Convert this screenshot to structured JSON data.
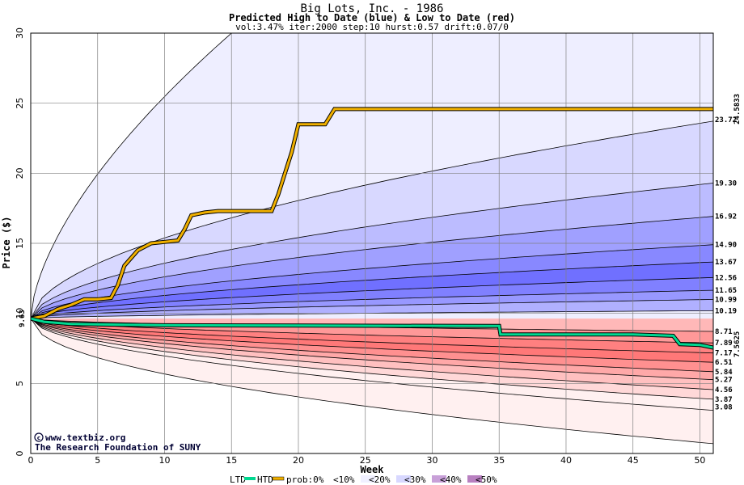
{
  "chart_data": {
    "type": "area",
    "title": "Big Lots, Inc. - 1986",
    "subtitle": "Predicted High to Date (blue) &  Low to Date (red)",
    "params": "vol:3.47% iter:2000 step:10 hurst:0.57 drift:0.07/0",
    "xlabel": "Week",
    "ylabel": "Price ($)",
    "xlim": [
      0,
      51
    ],
    "ylim": [
      0,
      30
    ],
    "x_ticks": [
      0,
      5,
      10,
      15,
      20,
      25,
      30,
      35,
      40,
      45,
      50
    ],
    "y_ticks": [
      0,
      5,
      10,
      15,
      20,
      25,
      30
    ],
    "start_price": 9.63,
    "start_label": "9.63",
    "upper_percentile_ends": [
      {
        "value": 23.72,
        "label": "23.72"
      },
      {
        "value": 19.3,
        "label": "19.30"
      },
      {
        "value": 16.92,
        "label": "16.92"
      },
      {
        "value": 14.9,
        "label": "14.90"
      },
      {
        "value": 13.67,
        "label": "13.67"
      },
      {
        "value": 12.56,
        "label": "12.56"
      },
      {
        "value": 11.65,
        "label": "11.65"
      },
      {
        "value": 10.99,
        "label": "10.99"
      },
      {
        "value": 10.19,
        "label": "10.19"
      }
    ],
    "lower_percentile_ends": [
      {
        "value": 8.71,
        "label": "8.71"
      },
      {
        "value": 7.89,
        "label": "7.89"
      },
      {
        "value": 7.17,
        "label": "7.17"
      },
      {
        "value": 6.51,
        "label": "6.51"
      },
      {
        "value": 5.84,
        "label": "5.84"
      },
      {
        "value": 5.27,
        "label": "5.27"
      },
      {
        "value": 4.56,
        "label": "4.56"
      },
      {
        "value": 3.87,
        "label": "3.87"
      },
      {
        "value": 3.08,
        "label": "3.08"
      }
    ],
    "upper_band_colors": [
      "#eeeeff",
      "#d8d8ff",
      "#bcbcff",
      "#a0a0ff",
      "#8888ff",
      "#7070ff",
      "#8080ff",
      "#9898ff",
      "#b0b0ff"
    ],
    "lower_band_colors": [
      "#ffb8b8",
      "#ff9898",
      "#ff8080",
      "#ff7878",
      "#ff9090",
      "#ffa8a8",
      "#ffc0c0",
      "#ffd8d8",
      "#fff0f0"
    ],
    "htd_series": {
      "name": "HTD",
      "color": "#f0b000",
      "end_value": 24.5833,
      "end_label": "24.5833",
      "points": [
        [
          0,
          9.63
        ],
        [
          1,
          9.8
        ],
        [
          2,
          10.3
        ],
        [
          3,
          10.6
        ],
        [
          4,
          11.0
        ],
        [
          5,
          11.0
        ],
        [
          6,
          11.1
        ],
        [
          6.5,
          12.0
        ],
        [
          7,
          13.4
        ],
        [
          8,
          14.5
        ],
        [
          9,
          15.0
        ],
        [
          10,
          15.1
        ],
        [
          11,
          15.2
        ],
        [
          11.5,
          16.0
        ],
        [
          12,
          17.0
        ],
        [
          13,
          17.2
        ],
        [
          14,
          17.3
        ],
        [
          18,
          17.3
        ],
        [
          18.5,
          18.5
        ],
        [
          19,
          20.0
        ],
        [
          19.5,
          21.5
        ],
        [
          20,
          23.5
        ],
        [
          22,
          23.5
        ],
        [
          22.7,
          24.58
        ],
        [
          51,
          24.58
        ]
      ]
    },
    "ltd_series": {
      "name": "LTD",
      "color": "#00d890",
      "end_value": 7.5625,
      "end_label": "7.5625",
      "points": [
        [
          0,
          9.63
        ],
        [
          1,
          9.4
        ],
        [
          3,
          9.25
        ],
        [
          6,
          9.2
        ],
        [
          10,
          9.15
        ],
        [
          35,
          9.1
        ],
        [
          35.1,
          8.5
        ],
        [
          45,
          8.5
        ],
        [
          48,
          8.4
        ],
        [
          48.5,
          7.8
        ],
        [
          50,
          7.75
        ],
        [
          51,
          7.56
        ]
      ]
    },
    "envelope_top": {
      "start": 9.63,
      "at_week_15": 30
    },
    "envelope_bottom_end": 0.7,
    "grid": true
  },
  "legend": {
    "ltd": "LTD",
    "htd": "HTD",
    "prob_prefix": "prob:0%",
    "items": [
      "<10%",
      "<20%",
      "<30%",
      "<40%",
      "<50%"
    ],
    "colors": [
      "#ffffff",
      "#f0f0ff",
      "#d8d8ff",
      "#c8a0d8",
      "#b880c0"
    ]
  },
  "credit": {
    "line1": "www.textbiz.org",
    "line2": "The Research Foundation of SUNY"
  }
}
